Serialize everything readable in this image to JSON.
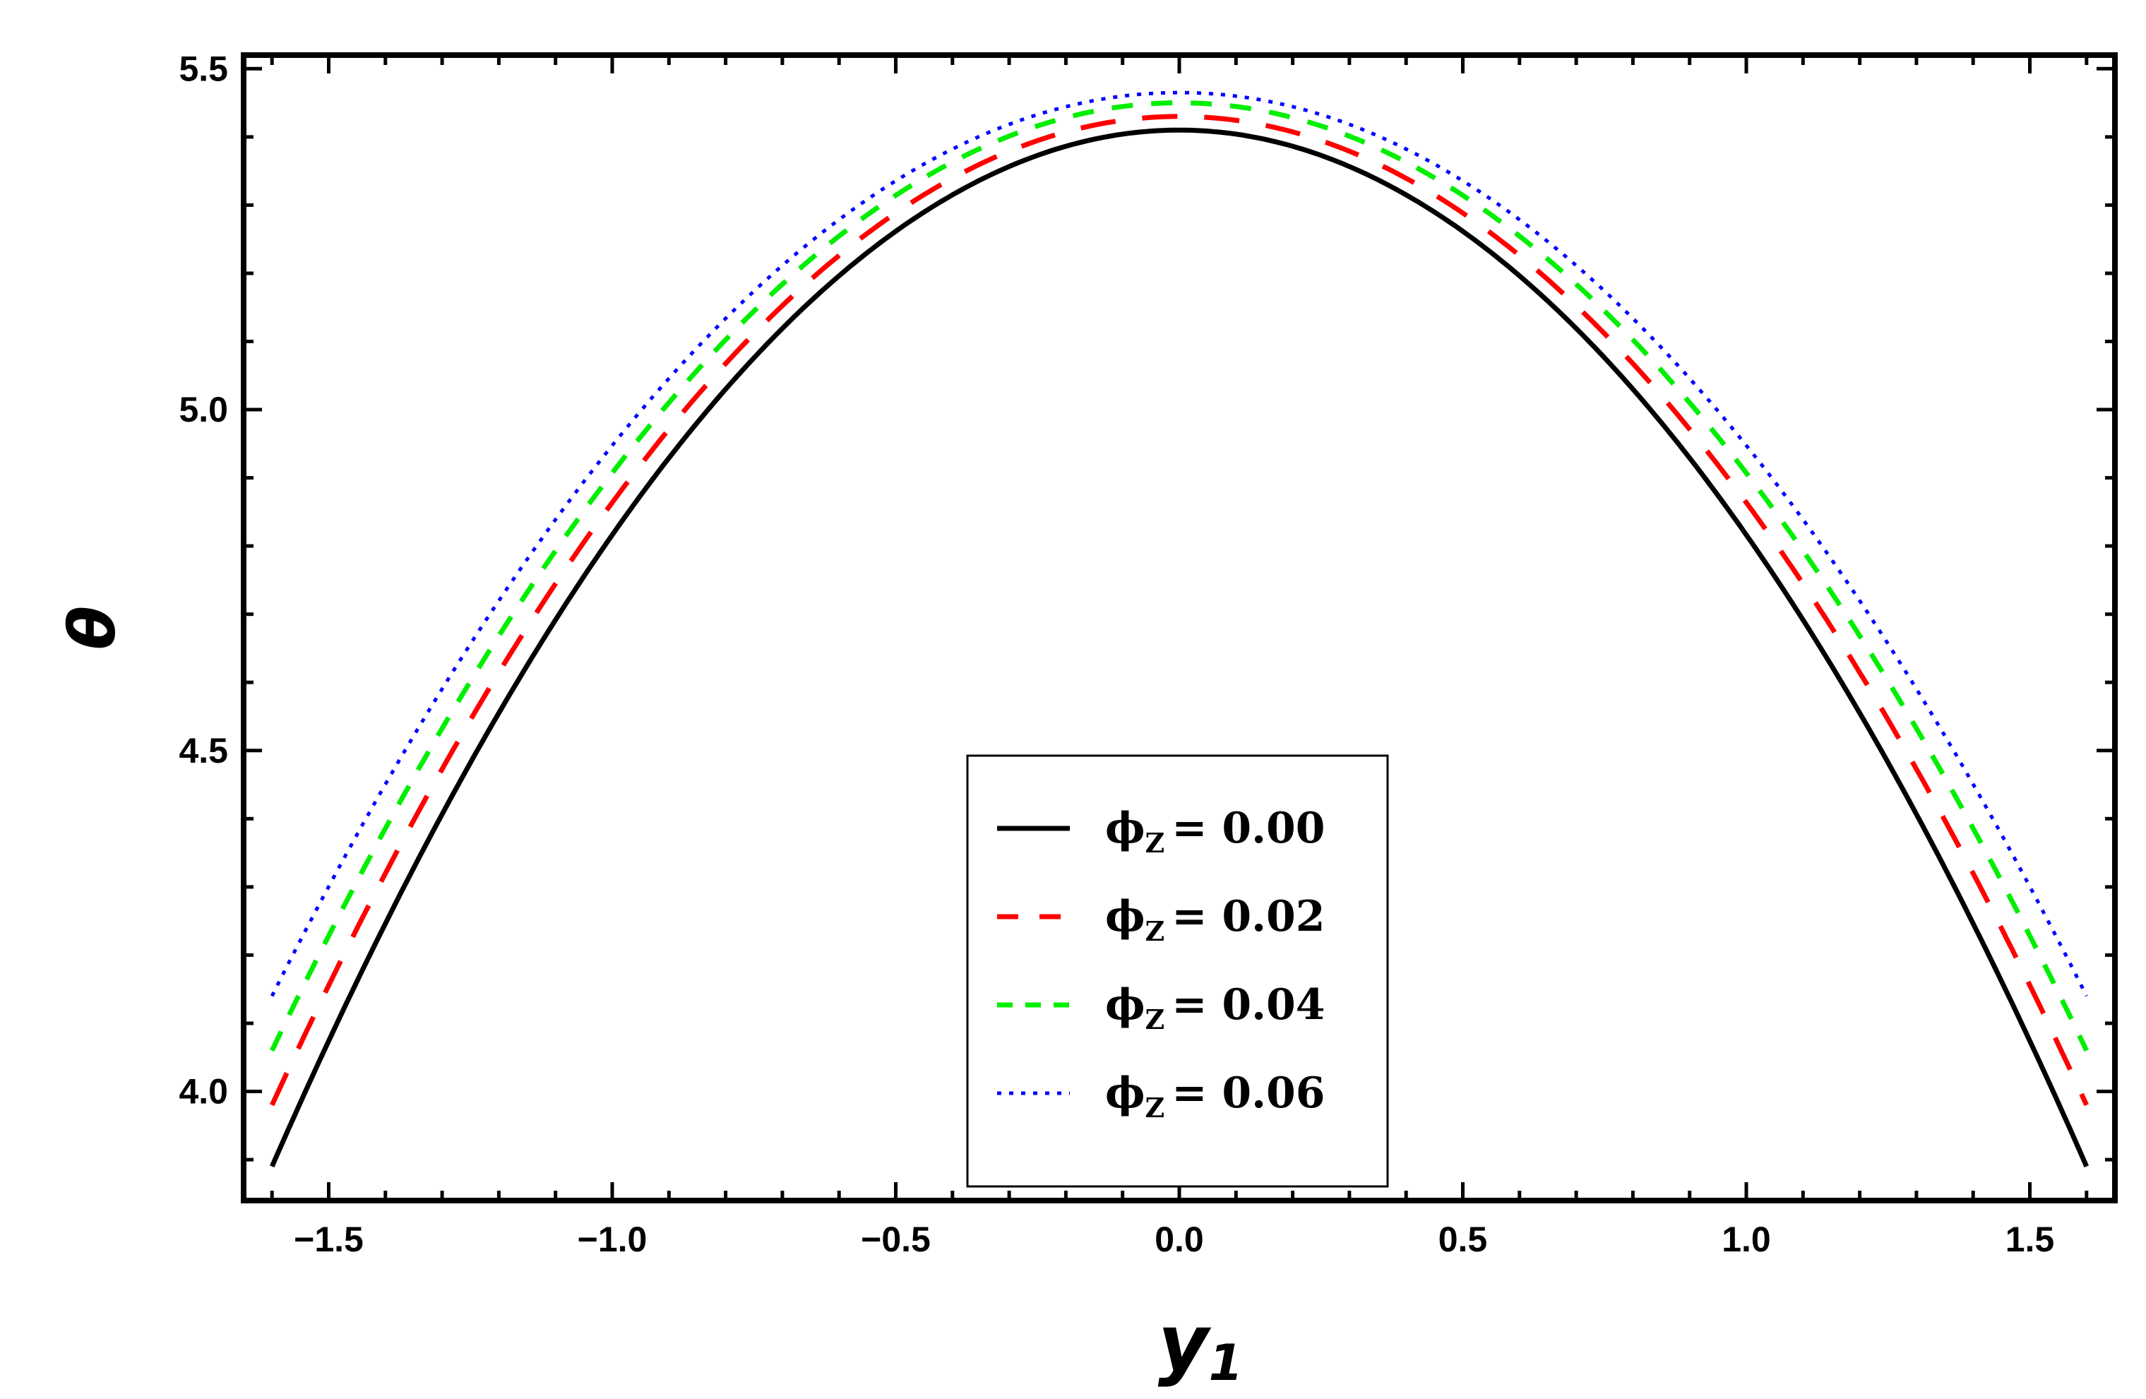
{
  "chart_data": {
    "type": "line",
    "xlabel": "y",
    "xlabel_sub": "1",
    "ylabel": "θ",
    "xlim": [
      -1.65,
      1.65
    ],
    "ylim": [
      3.84,
      5.52
    ],
    "x_ticks": [
      -1.5,
      -1.0,
      -0.5,
      0.0,
      0.5,
      1.0,
      1.5
    ],
    "x_tick_labels": [
      "−1.5",
      "−1.0",
      "−0.5",
      "0.0",
      "0.5",
      "1.0",
      "1.5"
    ],
    "y_ticks": [
      4.0,
      4.5,
      5.0,
      5.5
    ],
    "y_tick_labels": [
      "4.0",
      "4.5",
      "5.0",
      "5.5"
    ],
    "x_range": [
      -1.6,
      1.6
    ],
    "legend_position": "bottom-center",
    "grid": false,
    "series": [
      {
        "symbol": "ϕ",
        "subscript": "Z",
        "value_text": "= 0.00",
        "peak": 5.41,
        "edge": 3.89,
        "color": "#000000",
        "style": "solid"
      },
      {
        "symbol": "ϕ",
        "subscript": "Z",
        "value_text": "= 0.02",
        "peak": 5.43,
        "edge": 3.98,
        "color": "#ff0000",
        "style": "long-dash"
      },
      {
        "symbol": "ϕ",
        "subscript": "Z",
        "value_text": "= 0.04",
        "peak": 5.45,
        "edge": 4.06,
        "color": "#00ee00",
        "style": "dash"
      },
      {
        "symbol": "ϕ",
        "subscript": "Z",
        "value_text": "= 0.06",
        "peak": 5.465,
        "edge": 4.14,
        "color": "#0000ff",
        "style": "dotted"
      }
    ]
  }
}
